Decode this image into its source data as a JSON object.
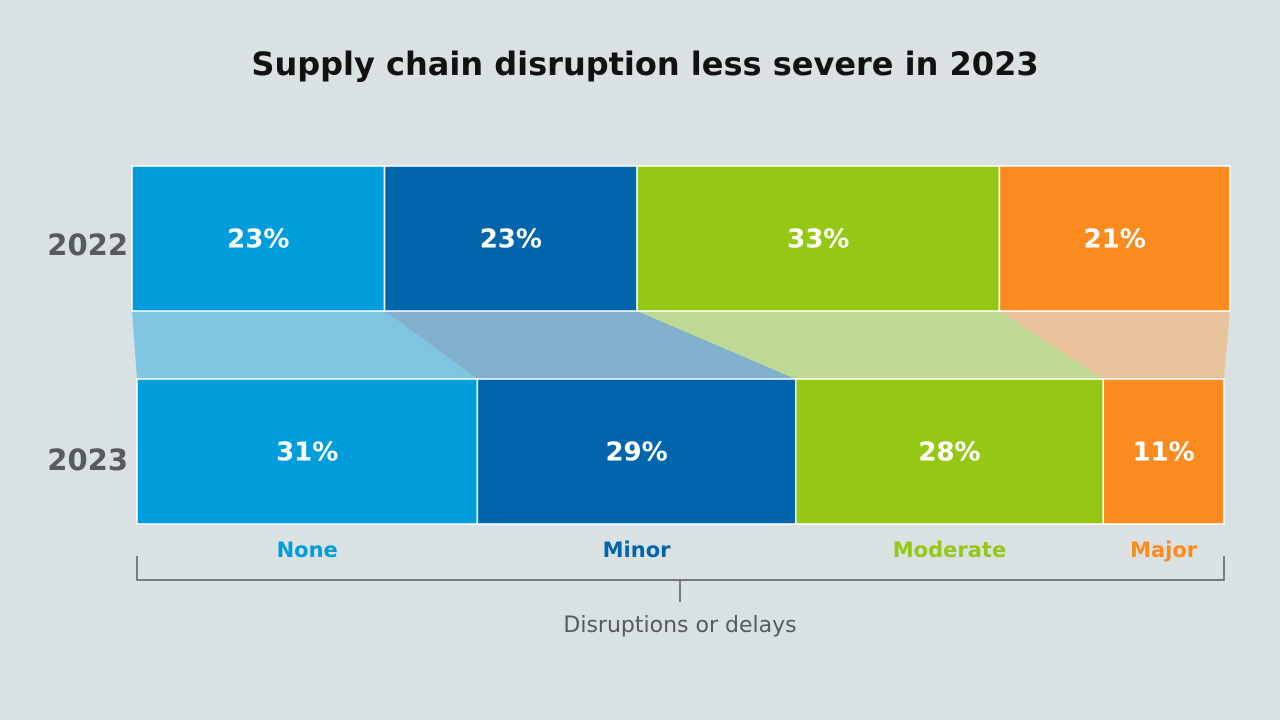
{
  "chart_data": {
    "type": "bar",
    "subtype": "stacked-100-horizontal",
    "title": "Supply chain disruption less severe in 2023",
    "categories": [
      "2022",
      "2023"
    ],
    "series": [
      {
        "name": "None",
        "color": "#009ddd",
        "band_color": "#7fc5e1",
        "values": [
          23,
          31
        ],
        "labels": [
          "23%",
          "31%"
        ]
      },
      {
        "name": "Minor",
        "color": "#0065ab",
        "band_color": "#80b0cb",
        "values": [
          23,
          29
        ],
        "labels": [
          "23%",
          "29%"
        ]
      },
      {
        "name": "Moderate",
        "color": "#95c814",
        "band_color": "#bed994",
        "values": [
          33,
          28
        ],
        "labels": [
          "33%",
          "28%"
        ]
      },
      {
        "name": "Major",
        "color": "#fb8b1f",
        "band_color": "#e8c39c",
        "values": [
          21,
          11
        ],
        "labels": [
          "21%",
          "11%"
        ]
      }
    ],
    "xlabel": "Disruptions or delays",
    "ylabel": "",
    "xlim": [
      0,
      100
    ]
  }
}
